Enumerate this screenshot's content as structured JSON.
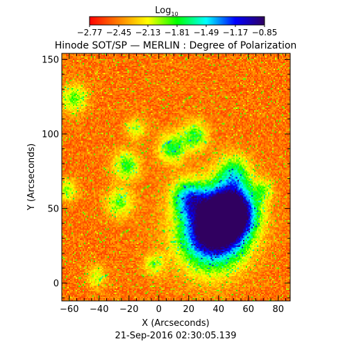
{
  "chart_data": {
    "type": "heatmap",
    "title": "Hinode SOT/SP — MERLIN : Degree of Polarization",
    "xlabel": "X (Arcseconds)",
    "ylabel": "Y (Arcseconds)",
    "xlim": [
      -65,
      88
    ],
    "ylim": [
      -12,
      154
    ],
    "x_ticks": [
      "−60",
      "−40",
      "−20",
      "0",
      "20",
      "40",
      "60",
      "80"
    ],
    "y_ticks": [
      "0",
      "50",
      "100",
      "150"
    ],
    "x_tick_values": [
      -60,
      -40,
      -20,
      0,
      20,
      40,
      60,
      80
    ],
    "y_tick_values": [
      0,
      50,
      100,
      150
    ],
    "colorbar": {
      "label": "Log",
      "label_subscript": "10",
      "range": [
        -2.77,
        -0.85
      ],
      "tick_labels": [
        "−2.77",
        "−2.45",
        "−2.13",
        "−1.81",
        "−1.49",
        "−1.17",
        "−0.85"
      ],
      "tick_values": [
        -2.77,
        -2.45,
        -2.13,
        -1.81,
        -1.49,
        -1.17,
        -0.85
      ],
      "colormap_stops": [
        "#ff0000",
        "#ff8000",
        "#ffff00",
        "#00ff00",
        "#00ffff",
        "#0000ff",
        "#300060"
      ]
    },
    "grid": false,
    "legend": "none",
    "timestamp": "21-Sep-2016 02:30:05.139"
  }
}
